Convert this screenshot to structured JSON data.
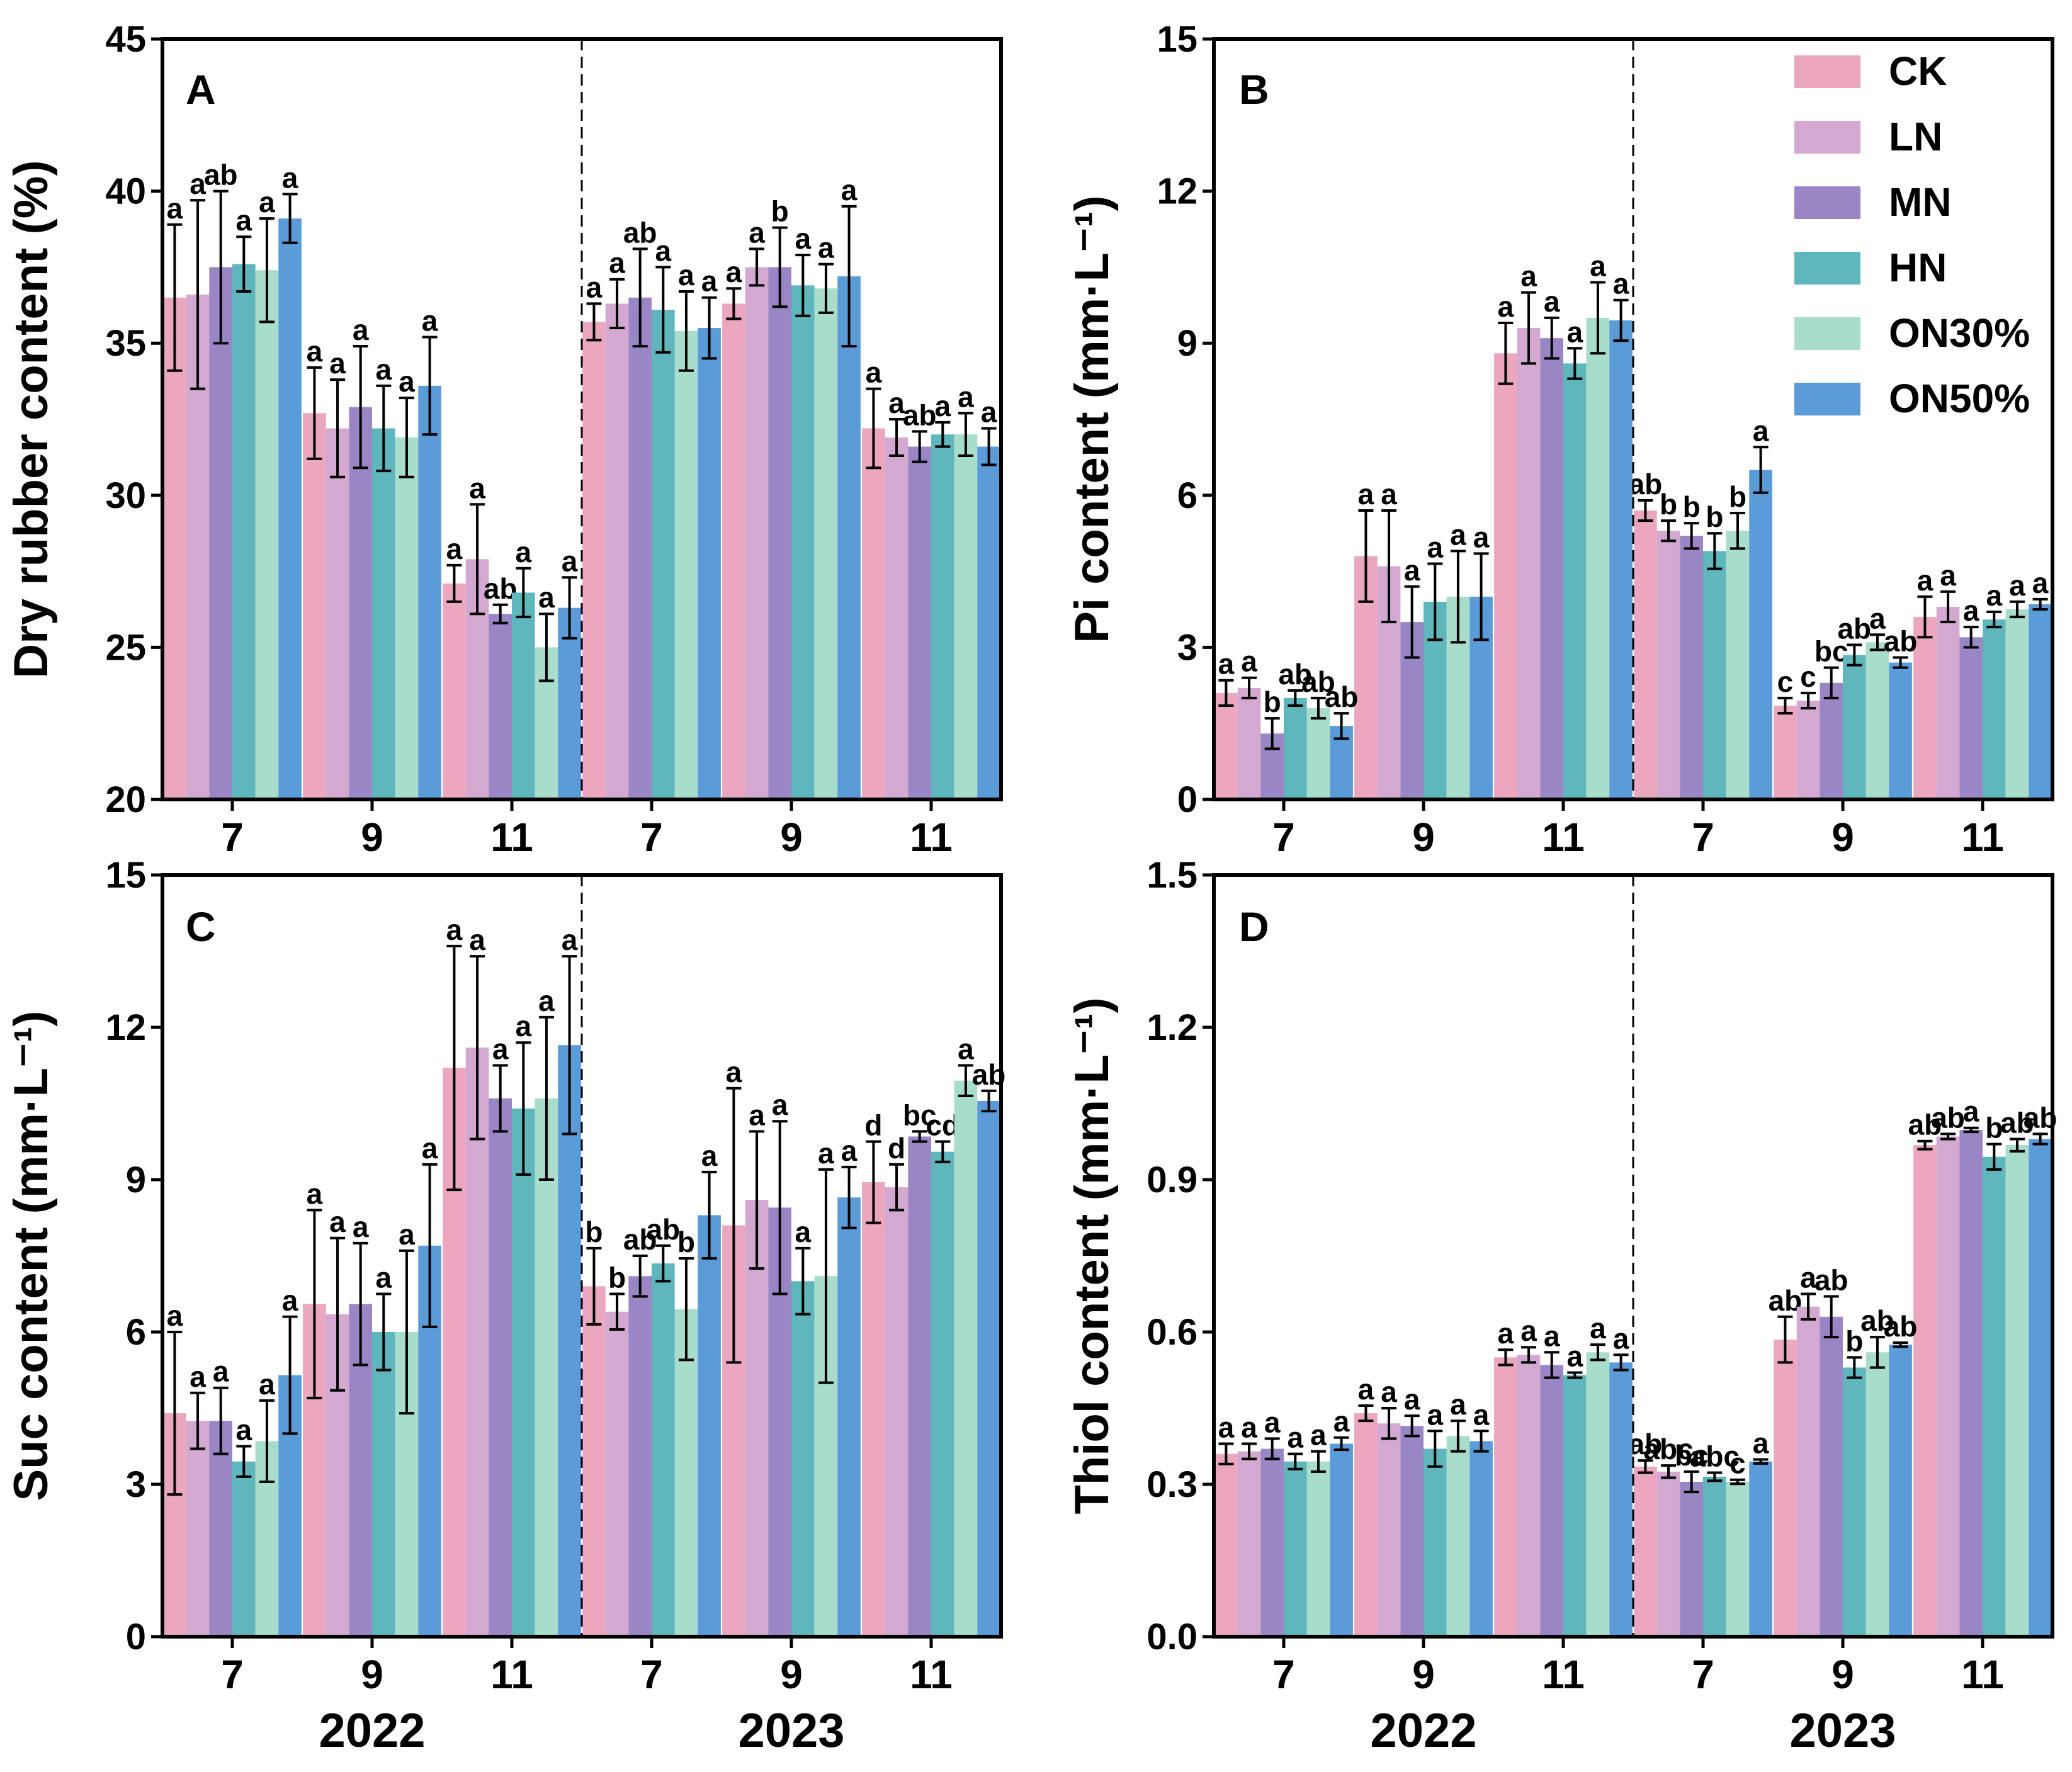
{
  "legend": [
    {
      "name": "CK",
      "color": "#EBA7BF"
    },
    {
      "name": "LN",
      "color": "#D3A8D1"
    },
    {
      "name": "MN",
      "color": "#9B86C5"
    },
    {
      "name": "HN",
      "color": "#5FB6BD"
    },
    {
      "name": "ON30%",
      "color": "#A8DCCB"
    },
    {
      "name": "ON50%",
      "color": "#5B9BD8"
    }
  ],
  "chart_data": [
    {
      "type": "bar",
      "panel": "A",
      "ylabel": "Dry rubber content (%)",
      "ylim": [
        20,
        45
      ],
      "yticks": [
        "20",
        "25",
        "30",
        "35",
        "40",
        "45"
      ],
      "group_labels": [
        "7",
        "9",
        "11",
        "7",
        "9",
        "11"
      ],
      "years": [
        "2022",
        "2023"
      ],
      "series": [
        {
          "name": "CK",
          "values": [
            36.5,
            32.7,
            27.1,
            35.7,
            36.3,
            32.2
          ],
          "errors": [
            2.4,
            1.5,
            0.6,
            0.6,
            0.5,
            1.3
          ],
          "letters": [
            "a",
            "a",
            "a",
            "a",
            "a",
            "a"
          ]
        },
        {
          "name": "LN",
          "values": [
            36.6,
            32.2,
            27.9,
            36.3,
            37.5,
            31.9
          ],
          "errors": [
            3.1,
            1.6,
            1.8,
            0.8,
            0.6,
            0.6
          ],
          "letters": [
            "a",
            "a",
            "a",
            "a",
            "a",
            "a"
          ]
        },
        {
          "name": "MN",
          "values": [
            37.5,
            32.9,
            26.1,
            36.5,
            37.5,
            31.6
          ],
          "errors": [
            2.5,
            2.0,
            0.3,
            1.6,
            1.3,
            0.5
          ],
          "letters": [
            "ab",
            "a",
            "ab",
            "ab",
            "b",
            "ab"
          ]
        },
        {
          "name": "HN",
          "values": [
            37.6,
            32.2,
            26.8,
            36.1,
            36.9,
            32.0
          ],
          "errors": [
            0.9,
            1.4,
            0.8,
            1.4,
            1.0,
            0.4
          ],
          "letters": [
            "a",
            "a",
            "a",
            "a",
            "a",
            "a"
          ]
        },
        {
          "name": "ON30%",
          "values": [
            37.4,
            31.9,
            25.0,
            35.4,
            36.8,
            32.0
          ],
          "errors": [
            1.7,
            1.3,
            1.1,
            1.3,
            0.8,
            0.7
          ],
          "letters": [
            "a",
            "a",
            "a",
            "a",
            "a",
            "a"
          ]
        },
        {
          "name": "ON50%",
          "values": [
            39.1,
            33.6,
            26.3,
            35.5,
            37.2,
            31.6
          ],
          "errors": [
            0.8,
            1.6,
            1.0,
            1.0,
            2.3,
            0.6
          ],
          "letters": [
            "a",
            "a",
            "a",
            "a",
            "a",
            "a"
          ]
        }
      ]
    },
    {
      "type": "bar",
      "panel": "B",
      "ylabel": "Pi content (mm·L⁻¹)",
      "ylim": [
        0,
        15
      ],
      "yticks": [
        "0",
        "3",
        "6",
        "9",
        "12",
        "15"
      ],
      "group_labels": [
        "7",
        "9",
        "11",
        "7",
        "9",
        "11"
      ],
      "years": [
        "2022",
        "2023"
      ],
      "series": [
        {
          "name": "CK",
          "values": [
            2.1,
            4.8,
            8.8,
            5.7,
            1.85,
            3.6
          ],
          "errors": [
            0.25,
            0.9,
            0.6,
            0.2,
            0.15,
            0.4
          ],
          "letters": [
            "a",
            "a",
            "a",
            "ab",
            "c",
            "a"
          ]
        },
        {
          "name": "LN",
          "values": [
            2.2,
            4.6,
            9.3,
            5.3,
            1.95,
            3.8
          ],
          "errors": [
            0.2,
            1.1,
            0.7,
            0.2,
            0.15,
            0.3
          ],
          "letters": [
            "a",
            "a",
            "a",
            "b",
            "c",
            "a"
          ]
        },
        {
          "name": "MN",
          "values": [
            1.3,
            3.5,
            9.1,
            5.2,
            2.3,
            3.2
          ],
          "errors": [
            0.3,
            0.7,
            0.4,
            0.25,
            0.3,
            0.2
          ],
          "letters": [
            "b",
            "a",
            "a",
            "b",
            "bc",
            "a"
          ]
        },
        {
          "name": "HN",
          "values": [
            2.0,
            3.9,
            8.6,
            4.9,
            2.85,
            3.55
          ],
          "errors": [
            0.15,
            0.75,
            0.3,
            0.35,
            0.2,
            0.15
          ],
          "letters": [
            "ab",
            "a",
            "a",
            "b",
            "ab",
            "a"
          ]
        },
        {
          "name": "ON30%",
          "values": [
            1.8,
            4.0,
            9.5,
            5.3,
            3.1,
            3.75
          ],
          "errors": [
            0.2,
            0.9,
            0.7,
            0.35,
            0.15,
            0.15
          ],
          "letters": [
            "ab",
            "a",
            "a",
            "b",
            "a",
            "a"
          ]
        },
        {
          "name": "ON50%",
          "values": [
            1.45,
            4.0,
            9.45,
            6.5,
            2.7,
            3.85
          ],
          "errors": [
            0.25,
            0.85,
            0.4,
            0.45,
            0.1,
            0.1
          ],
          "letters": [
            "ab",
            "a",
            "a",
            "a",
            "ab",
            "a"
          ]
        }
      ]
    },
    {
      "type": "bar",
      "panel": "C",
      "ylabel": "Suc content (mm·L⁻¹)",
      "ylim": [
        0,
        15
      ],
      "yticks": [
        "0",
        "3",
        "6",
        "9",
        "12",
        "15"
      ],
      "group_labels": [
        "7",
        "9",
        "11",
        "7",
        "9",
        "11"
      ],
      "years": [
        "2022",
        "2023"
      ],
      "series": [
        {
          "name": "CK",
          "values": [
            4.4,
            6.55,
            11.2,
            6.9,
            8.1,
            8.95
          ],
          "errors": [
            1.6,
            1.85,
            2.4,
            0.75,
            2.7,
            0.8
          ],
          "letters": [
            "a",
            "a",
            "a",
            "b",
            "a",
            "d"
          ]
        },
        {
          "name": "LN",
          "values": [
            4.25,
            6.35,
            11.6,
            6.4,
            8.6,
            8.85
          ],
          "errors": [
            0.55,
            1.5,
            1.8,
            0.35,
            1.35,
            0.45
          ],
          "letters": [
            "a",
            "a",
            "a",
            "b",
            "a",
            "d"
          ]
        },
        {
          "name": "MN",
          "values": [
            4.25,
            6.55,
            10.6,
            7.1,
            8.45,
            9.85
          ],
          "errors": [
            0.65,
            1.2,
            0.65,
            0.4,
            1.7,
            0.1
          ],
          "letters": [
            "a",
            "a",
            "a",
            "ab",
            "a",
            "bc"
          ]
        },
        {
          "name": "HN",
          "values": [
            3.45,
            6.0,
            10.4,
            7.35,
            7.0,
            9.55
          ],
          "errors": [
            0.3,
            0.75,
            1.3,
            0.35,
            0.65,
            0.2
          ],
          "letters": [
            "a",
            "a",
            "a",
            "ab",
            "a",
            "cd"
          ]
        },
        {
          "name": "ON30%",
          "values": [
            3.85,
            6.0,
            10.6,
            6.45,
            7.1,
            10.95
          ],
          "errors": [
            0.8,
            1.6,
            1.6,
            1.0,
            2.1,
            0.3
          ],
          "letters": [
            "a",
            "a",
            "a",
            "b",
            "a",
            "a"
          ]
        },
        {
          "name": "ON50%",
          "values": [
            5.15,
            7.7,
            11.65,
            8.3,
            8.65,
            10.55
          ],
          "errors": [
            1.15,
            1.6,
            1.75,
            0.85,
            0.6,
            0.2
          ],
          "letters": [
            "a",
            "a",
            "a",
            "a",
            "a",
            "ab"
          ]
        }
      ]
    },
    {
      "type": "bar",
      "panel": "D",
      "ylabel": "Thiol content (mm·L⁻¹)",
      "ylim": [
        0,
        1.5
      ],
      "yticks": [
        "0.0",
        "0.3",
        "0.6",
        "0.9",
        "1.2",
        "1.5"
      ],
      "group_labels": [
        "7",
        "9",
        "11",
        "7",
        "9",
        "11"
      ],
      "years": [
        "2022",
        "2023"
      ],
      "series": [
        {
          "name": "CK",
          "values": [
            0.36,
            0.44,
            0.55,
            0.335,
            0.585,
            0.968
          ],
          "errors": [
            0.02,
            0.015,
            0.015,
            0.012,
            0.045,
            0.008
          ],
          "letters": [
            "a",
            "a",
            "a",
            "ab",
            "ab",
            "ab"
          ]
        },
        {
          "name": "LN",
          "values": [
            0.365,
            0.42,
            0.555,
            0.325,
            0.65,
            0.985
          ],
          "errors": [
            0.015,
            0.03,
            0.015,
            0.012,
            0.025,
            0.005
          ],
          "letters": [
            "a",
            "a",
            "a",
            "abc",
            "a",
            "ab"
          ]
        },
        {
          "name": "MN",
          "values": [
            0.37,
            0.415,
            0.535,
            0.305,
            0.63,
            0.998
          ],
          "errors": [
            0.02,
            0.02,
            0.025,
            0.02,
            0.04,
            0.004
          ],
          "letters": [
            "a",
            "a",
            "a",
            "bc",
            "ab",
            "a"
          ]
        },
        {
          "name": "HN",
          "values": [
            0.345,
            0.37,
            0.515,
            0.315,
            0.53,
            0.945
          ],
          "errors": [
            0.015,
            0.035,
            0.005,
            0.008,
            0.02,
            0.025
          ],
          "letters": [
            "a",
            "a",
            "a",
            "abc",
            "b",
            "b"
          ]
        },
        {
          "name": "ON30%",
          "values": [
            0.345,
            0.395,
            0.56,
            0.305,
            0.56,
            0.968
          ],
          "errors": [
            0.02,
            0.03,
            0.015,
            0.004,
            0.03,
            0.012
          ],
          "letters": [
            "a",
            "a",
            "a",
            "c",
            "ab",
            "ab"
          ]
        },
        {
          "name": "ON50%",
          "values": [
            0.38,
            0.385,
            0.54,
            0.345,
            0.575,
            0.98
          ],
          "errors": [
            0.012,
            0.02,
            0.015,
            0.004,
            0.004,
            0.01
          ],
          "letters": [
            "a",
            "a",
            "a",
            "a",
            "ab",
            "ab"
          ]
        }
      ]
    }
  ]
}
